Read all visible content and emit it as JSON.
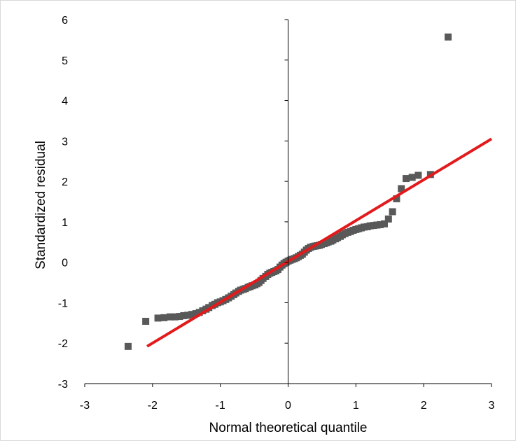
{
  "chart_data": {
    "type": "scatter",
    "title": "",
    "xlabel": "Normal theoretical quantile",
    "ylabel": "Standardized residual",
    "xlim": [
      -3,
      3
    ],
    "ylim": [
      -3,
      6
    ],
    "xticks": [
      -3,
      -2,
      -1,
      0,
      1,
      2,
      3
    ],
    "yticks": [
      -3,
      -2,
      -1,
      0,
      1,
      2,
      3,
      4,
      5,
      6
    ],
    "grid": false,
    "legend": "none",
    "marker_color": "#595959",
    "line_color": "#e31a1c",
    "series": [
      {
        "kind": "points",
        "points": [
          [
            -2.36,
            -2.08
          ],
          [
            -2.1,
            -1.46
          ],
          [
            -1.92,
            -1.38
          ],
          [
            -1.83,
            -1.37
          ],
          [
            -1.74,
            -1.35
          ],
          [
            -1.67,
            -1.35
          ],
          [
            -1.6,
            -1.34
          ],
          [
            -1.54,
            -1.32
          ],
          [
            -1.48,
            -1.31
          ],
          [
            -1.42,
            -1.29
          ],
          [
            -1.36,
            -1.27
          ],
          [
            -1.31,
            -1.24
          ],
          [
            -1.26,
            -1.2
          ],
          [
            -1.21,
            -1.16
          ],
          [
            -1.17,
            -1.12
          ],
          [
            -1.12,
            -1.07
          ],
          [
            -1.08,
            -1.04
          ],
          [
            -1.04,
            -1.0
          ],
          [
            -1.0,
            -0.98
          ],
          [
            -0.96,
            -0.95
          ],
          [
            -0.92,
            -0.92
          ],
          [
            -0.88,
            -0.88
          ],
          [
            -0.84,
            -0.84
          ],
          [
            -0.8,
            -0.8
          ],
          [
            -0.77,
            -0.76
          ],
          [
            -0.73,
            -0.72
          ],
          [
            -0.7,
            -0.69
          ],
          [
            -0.66,
            -0.67
          ],
          [
            -0.63,
            -0.65
          ],
          [
            -0.59,
            -0.62
          ],
          [
            -0.56,
            -0.6
          ],
          [
            -0.53,
            -0.58
          ],
          [
            -0.49,
            -0.56
          ],
          [
            -0.46,
            -0.53
          ],
          [
            -0.43,
            -0.5
          ],
          [
            -0.4,
            -0.45
          ],
          [
            -0.37,
            -0.4
          ],
          [
            -0.33,
            -0.35
          ],
          [
            -0.3,
            -0.3
          ],
          [
            -0.27,
            -0.27
          ],
          [
            -0.24,
            -0.25
          ],
          [
            -0.21,
            -0.23
          ],
          [
            -0.18,
            -0.21
          ],
          [
            -0.15,
            -0.18
          ],
          [
            -0.12,
            -0.12
          ],
          [
            -0.09,
            -0.07
          ],
          [
            -0.06,
            -0.03
          ],
          [
            -0.03,
            0.0
          ],
          [
            0.0,
            0.03
          ],
          [
            0.03,
            0.05
          ],
          [
            0.06,
            0.07
          ],
          [
            0.09,
            0.09
          ],
          [
            0.12,
            0.11
          ],
          [
            0.15,
            0.14
          ],
          [
            0.18,
            0.17
          ],
          [
            0.21,
            0.2
          ],
          [
            0.24,
            0.25
          ],
          [
            0.27,
            0.3
          ],
          [
            0.3,
            0.34
          ],
          [
            0.33,
            0.37
          ],
          [
            0.37,
            0.39
          ],
          [
            0.4,
            0.4
          ],
          [
            0.43,
            0.41
          ],
          [
            0.46,
            0.42
          ],
          [
            0.49,
            0.44
          ],
          [
            0.53,
            0.46
          ],
          [
            0.56,
            0.48
          ],
          [
            0.59,
            0.5
          ],
          [
            0.63,
            0.52
          ],
          [
            0.66,
            0.55
          ],
          [
            0.7,
            0.58
          ],
          [
            0.73,
            0.61
          ],
          [
            0.77,
            0.64
          ],
          [
            0.8,
            0.68
          ],
          [
            0.84,
            0.71
          ],
          [
            0.88,
            0.74
          ],
          [
            0.92,
            0.76
          ],
          [
            0.96,
            0.79
          ],
          [
            1.0,
            0.81
          ],
          [
            1.04,
            0.83
          ],
          [
            1.08,
            0.85
          ],
          [
            1.12,
            0.87
          ],
          [
            1.17,
            0.88
          ],
          [
            1.21,
            0.9
          ],
          [
            1.26,
            0.91
          ],
          [
            1.31,
            0.92
          ],
          [
            1.36,
            0.93
          ],
          [
            1.42,
            0.95
          ],
          [
            1.48,
            1.07
          ],
          [
            1.54,
            1.25
          ],
          [
            1.6,
            1.57
          ],
          [
            1.67,
            1.82
          ],
          [
            1.74,
            2.07
          ],
          [
            1.83,
            2.1
          ],
          [
            1.92,
            2.15
          ],
          [
            2.1,
            2.17
          ],
          [
            2.36,
            5.57
          ]
        ]
      },
      {
        "kind": "line",
        "points": [
          [
            -2.08,
            -2.08
          ],
          [
            3.0,
            3.05
          ]
        ]
      }
    ]
  }
}
